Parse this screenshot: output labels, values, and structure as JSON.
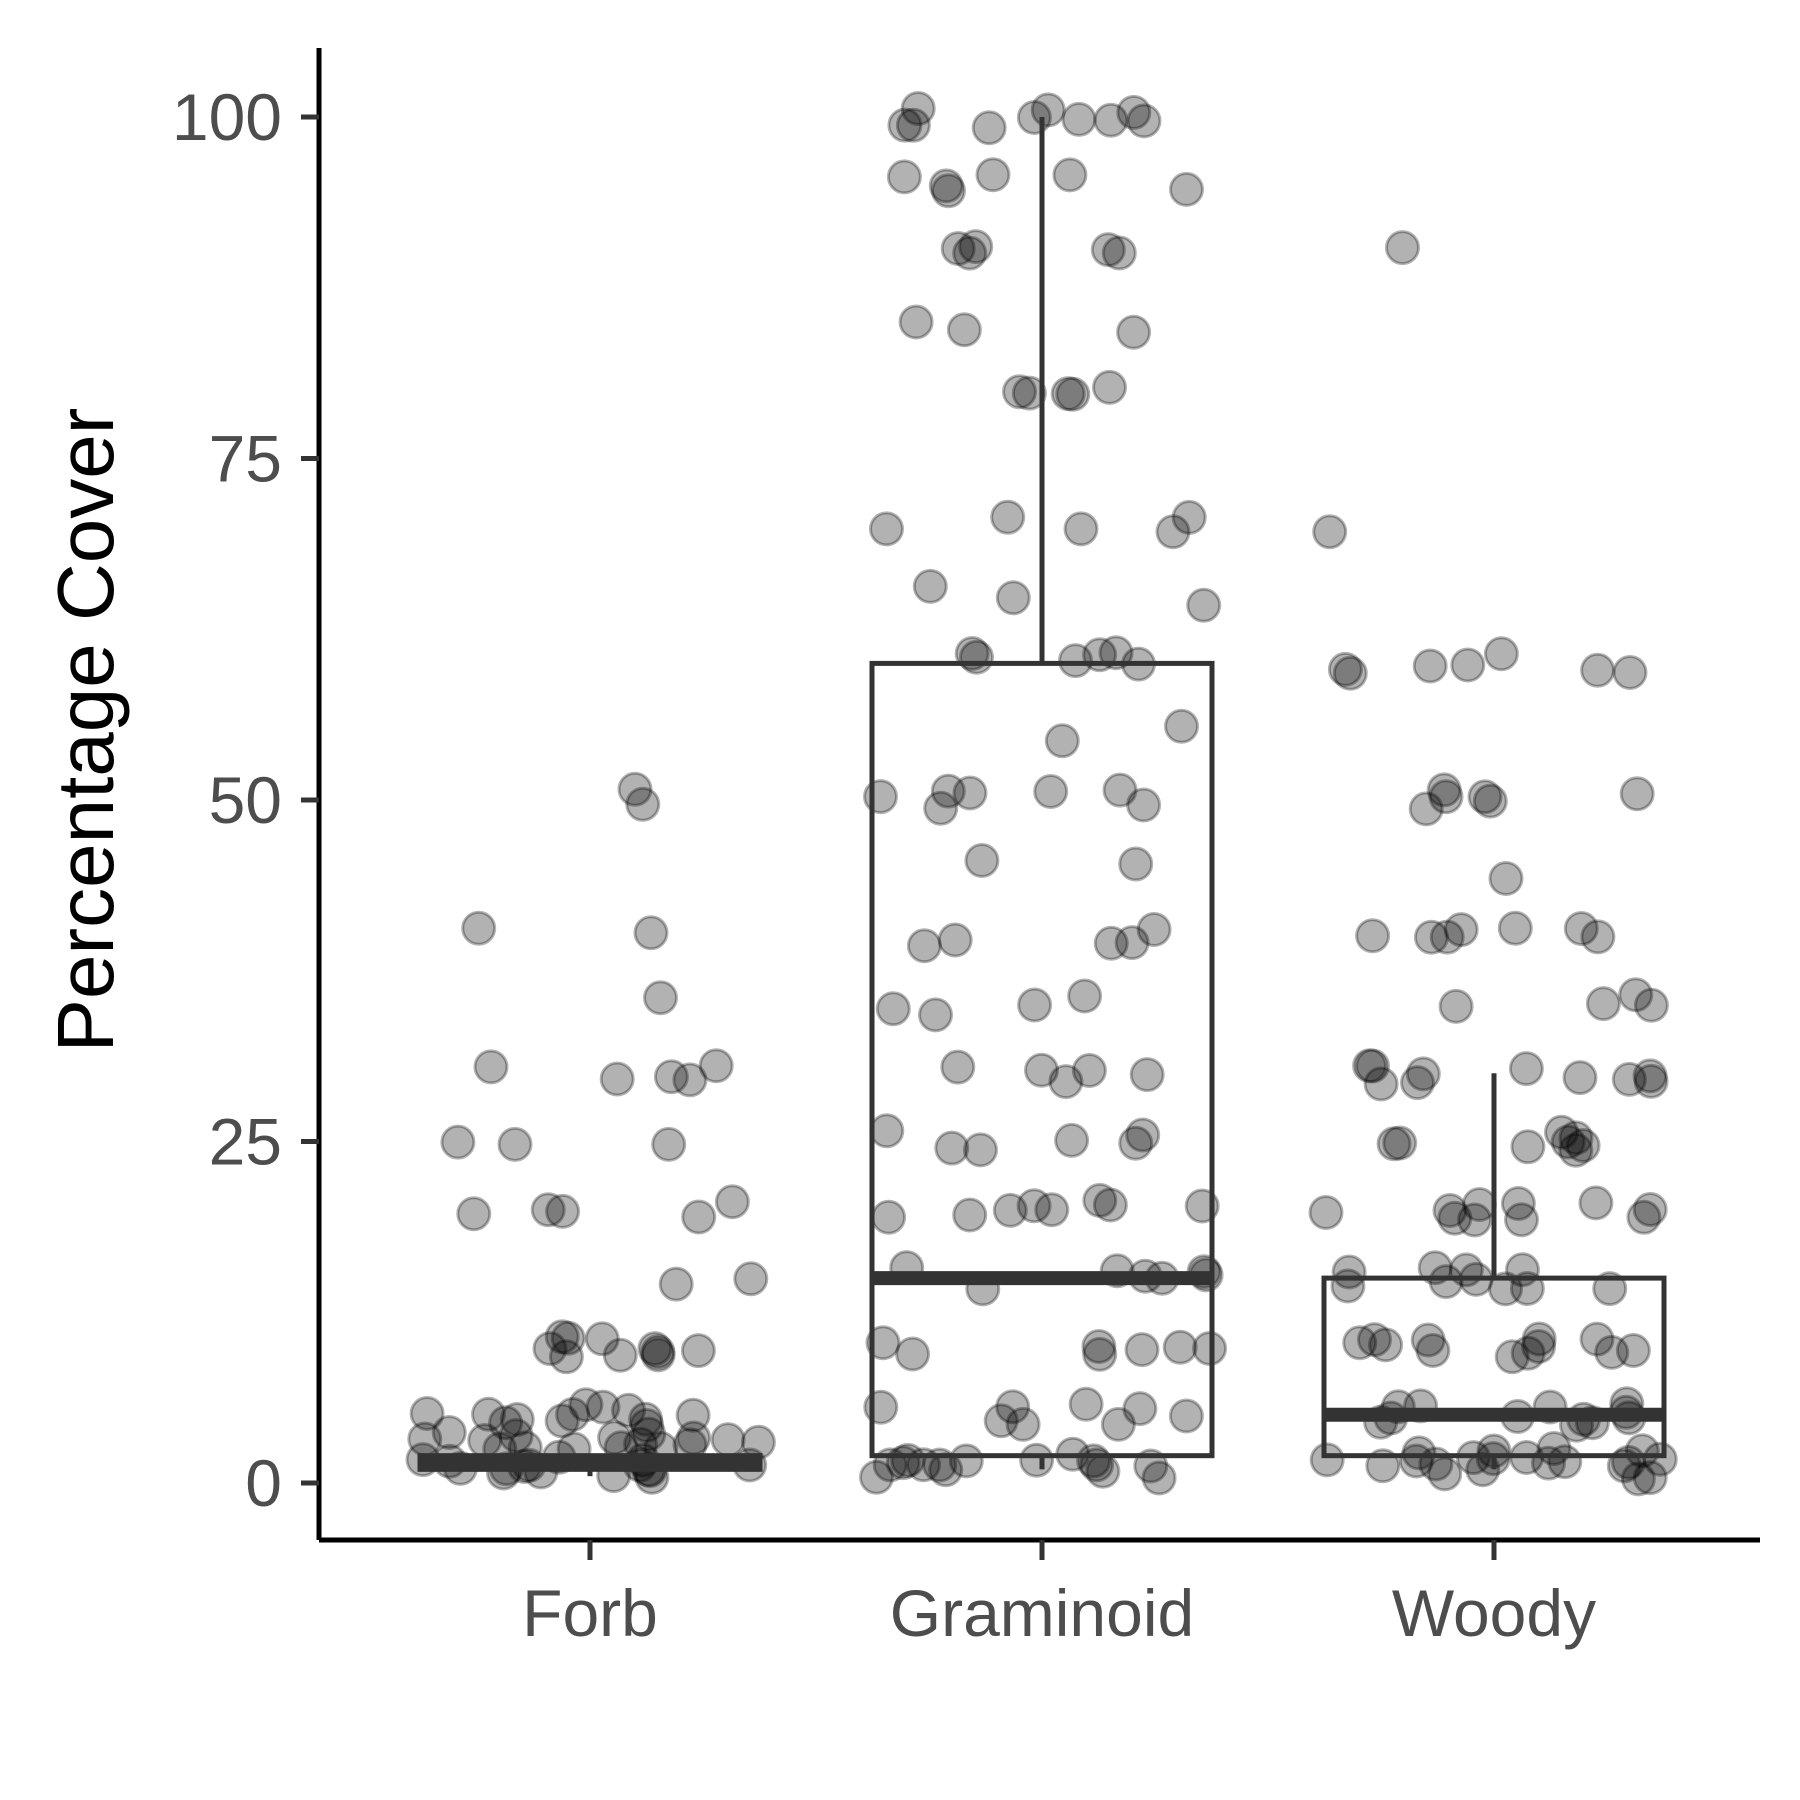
{
  "chart_data": {
    "type": "box",
    "ylabel": "Percentage Cover",
    "xlabel": "",
    "ylim": [
      -4,
      105
    ],
    "yticks": [
      0,
      25,
      50,
      75,
      100
    ],
    "ytick_labels": [
      "0",
      "25",
      "50",
      "75",
      "100"
    ],
    "categories": [
      "Forb",
      "Graminoid",
      "Woody"
    ],
    "boxes": [
      {
        "category": "Forb",
        "q1": 1,
        "median": 1.5,
        "q3": 2,
        "whisker_low": 0.5,
        "whisker_high": 2
      },
      {
        "category": "Graminoid",
        "q1": 2,
        "median": 15,
        "q3": 60,
        "whisker_low": 1,
        "whisker_high": 100
      },
      {
        "category": "Woody",
        "q1": 2,
        "median": 5,
        "q3": 15,
        "whisker_low": 1,
        "whisker_high": 30
      }
    ],
    "points": [
      {
        "category": "Forb",
        "values": [
          50,
          50,
          40,
          40,
          35,
          30,
          30,
          30,
          30,
          30,
          25,
          25,
          25,
          20,
          20,
          20,
          20,
          20,
          15,
          15,
          10,
          10,
          10,
          10,
          10,
          10,
          10,
          10,
          10,
          10,
          5,
          5,
          5,
          5,
          5,
          5,
          5,
          5,
          5,
          5,
          5,
          5,
          3,
          3,
          3,
          3,
          3,
          3,
          3,
          3,
          3,
          3,
          2,
          2,
          2,
          2,
          2,
          2,
          2,
          2,
          2,
          2,
          1,
          1,
          1,
          1,
          1,
          1,
          1,
          1,
          1,
          1,
          1,
          1
        ]
      },
      {
        "category": "Graminoid",
        "values": [
          100,
          100,
          100,
          100,
          100,
          100,
          100,
          100,
          100,
          100,
          95,
          95,
          95,
          95,
          95,
          95,
          90,
          90,
          90,
          90,
          90,
          85,
          85,
          85,
          80,
          80,
          80,
          80,
          80,
          70,
          70,
          70,
          70,
          70,
          65,
          65,
          65,
          60,
          60,
          60,
          60,
          60,
          60,
          55,
          55,
          50,
          50,
          50,
          50,
          50,
          50,
          50,
          45,
          45,
          40,
          40,
          40,
          40,
          40,
          35,
          35,
          35,
          35,
          30,
          30,
          30,
          30,
          30,
          25,
          25,
          25,
          25,
          25,
          25,
          20,
          20,
          20,
          20,
          20,
          20,
          20,
          20,
          15,
          15,
          15,
          15,
          15,
          15,
          15,
          10,
          10,
          10,
          10,
          10,
          10,
          10,
          5,
          5,
          5,
          5,
          5,
          5,
          5,
          5,
          2,
          2,
          2,
          2,
          2,
          2,
          2,
          1,
          1,
          1,
          1,
          1,
          1,
          1,
          1
        ]
      },
      {
        "category": "Woody",
        "values": [
          90,
          70,
          60,
          60,
          60,
          60,
          60,
          60,
          60,
          50,
          50,
          50,
          50,
          50,
          50,
          45,
          40,
          40,
          40,
          40,
          40,
          40,
          40,
          35,
          35,
          35,
          35,
          30,
          30,
          30,
          30,
          30,
          30,
          30,
          30,
          30,
          30,
          25,
          25,
          25,
          25,
          25,
          25,
          25,
          25,
          20,
          20,
          20,
          20,
          20,
          20,
          20,
          20,
          20,
          20,
          15,
          15,
          15,
          15,
          15,
          15,
          15,
          15,
          15,
          15,
          10,
          10,
          10,
          10,
          10,
          10,
          10,
          10,
          10,
          10,
          10,
          10,
          5,
          5,
          5,
          5,
          5,
          5,
          5,
          5,
          5,
          5,
          5,
          5,
          2,
          2,
          2,
          2,
          2,
          2,
          2,
          2,
          2,
          2,
          1,
          1,
          1,
          1,
          1,
          1,
          1,
          1,
          1,
          1
        ]
      }
    ],
    "grid": false,
    "legend": "none"
  }
}
